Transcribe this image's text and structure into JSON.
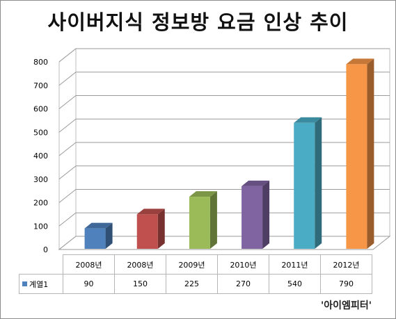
{
  "chart_data": {
    "type": "bar",
    "title": "사이버지식 정보방 요금 인상 추이",
    "categories": [
      "2008년",
      "2008년",
      "2009년",
      "2010년",
      "2011년",
      "2012년"
    ],
    "series": [
      {
        "name": "계열1",
        "values": [
          90,
          150,
          225,
          270,
          540,
          790
        ]
      }
    ],
    "ylim": [
      0,
      800
    ],
    "yticks": [
      0,
      100,
      200,
      300,
      400,
      500,
      600,
      700,
      800
    ],
    "grid": true,
    "legend_placement": "data-table",
    "bar_colors": [
      "#4f81bd",
      "#c0504d",
      "#9bbb59",
      "#8064a2",
      "#4bacc6",
      "#f79646"
    ],
    "three_d": true
  },
  "watermark": "'아이엠피터'"
}
